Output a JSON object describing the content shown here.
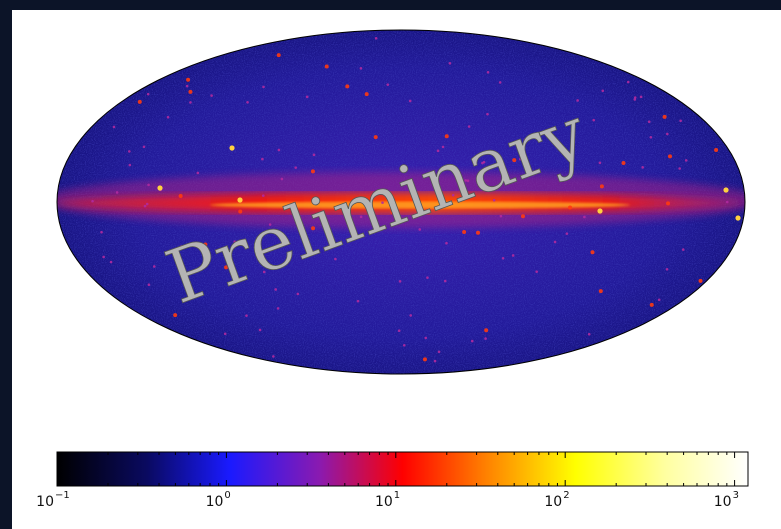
{
  "chart_data": {
    "type": "skymap",
    "watermark": "Preliminary",
    "colorbar": {
      "scale": "log",
      "lim": [
        0.1,
        1200
      ],
      "ticks": [
        {
          "value": 0.1,
          "label": "10",
          "sup": "−1"
        },
        {
          "value": 1,
          "label": "10",
          "sup": "0"
        },
        {
          "value": 10,
          "label": "10",
          "sup": "1"
        },
        {
          "value": 100,
          "label": "10",
          "sup": "2"
        },
        {
          "value": 1000,
          "label": "10",
          "sup": "3"
        }
      ]
    }
  }
}
